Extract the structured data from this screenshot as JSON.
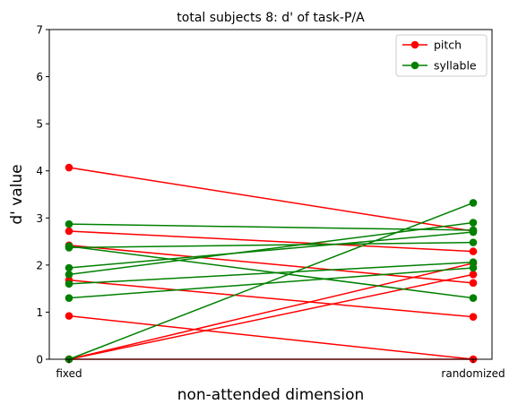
{
  "chart_data": {
    "type": "line",
    "title": "total subjects 8: d' of task-P/A",
    "xlabel": "non-attended dimension",
    "ylabel": "d' value",
    "categories": [
      "fixed",
      "randomized"
    ],
    "ylim": [
      0,
      7
    ],
    "yticks": [
      "0",
      "1",
      "2",
      "3",
      "4",
      "5",
      "6",
      "7"
    ],
    "grid": false,
    "legend_position": "top-right",
    "legend": [
      {
        "label": "pitch",
        "color": "#ff0000"
      },
      {
        "label": "syllable",
        "color": "#008000"
      }
    ],
    "series": [
      {
        "group": "pitch",
        "color": "#ff0000",
        "values": [
          4.07,
          2.72
        ]
      },
      {
        "group": "pitch",
        "color": "#ff0000",
        "values": [
          2.72,
          2.29
        ]
      },
      {
        "group": "pitch",
        "color": "#ff0000",
        "values": [
          2.42,
          1.62
        ]
      },
      {
        "group": "pitch",
        "color": "#ff0000",
        "values": [
          1.68,
          0.9
        ]
      },
      {
        "group": "pitch",
        "color": "#ff0000",
        "values": [
          0.92,
          0.0
        ]
      },
      {
        "group": "pitch",
        "color": "#ff0000",
        "values": [
          0.0,
          2.04
        ]
      },
      {
        "group": "pitch",
        "color": "#ff0000",
        "values": [
          0.0,
          1.8
        ]
      },
      {
        "group": "pitch",
        "color": "#ff0000",
        "values": [
          0.0,
          0.0
        ]
      },
      {
        "group": "syllable",
        "color": "#008000",
        "values": [
          2.87,
          2.74
        ]
      },
      {
        "group": "syllable",
        "color": "#008000",
        "values": [
          2.4,
          1.3
        ]
      },
      {
        "group": "syllable",
        "color": "#008000",
        "values": [
          2.37,
          2.48
        ]
      },
      {
        "group": "syllable",
        "color": "#008000",
        "values": [
          1.94,
          2.7
        ]
      },
      {
        "group": "syllable",
        "color": "#008000",
        "values": [
          1.8,
          2.9
        ]
      },
      {
        "group": "syllable",
        "color": "#008000",
        "values": [
          1.6,
          2.06
        ]
      },
      {
        "group": "syllable",
        "color": "#008000",
        "values": [
          1.3,
          1.94
        ]
      },
      {
        "group": "syllable",
        "color": "#008000",
        "values": [
          0.0,
          3.32
        ]
      }
    ]
  }
}
